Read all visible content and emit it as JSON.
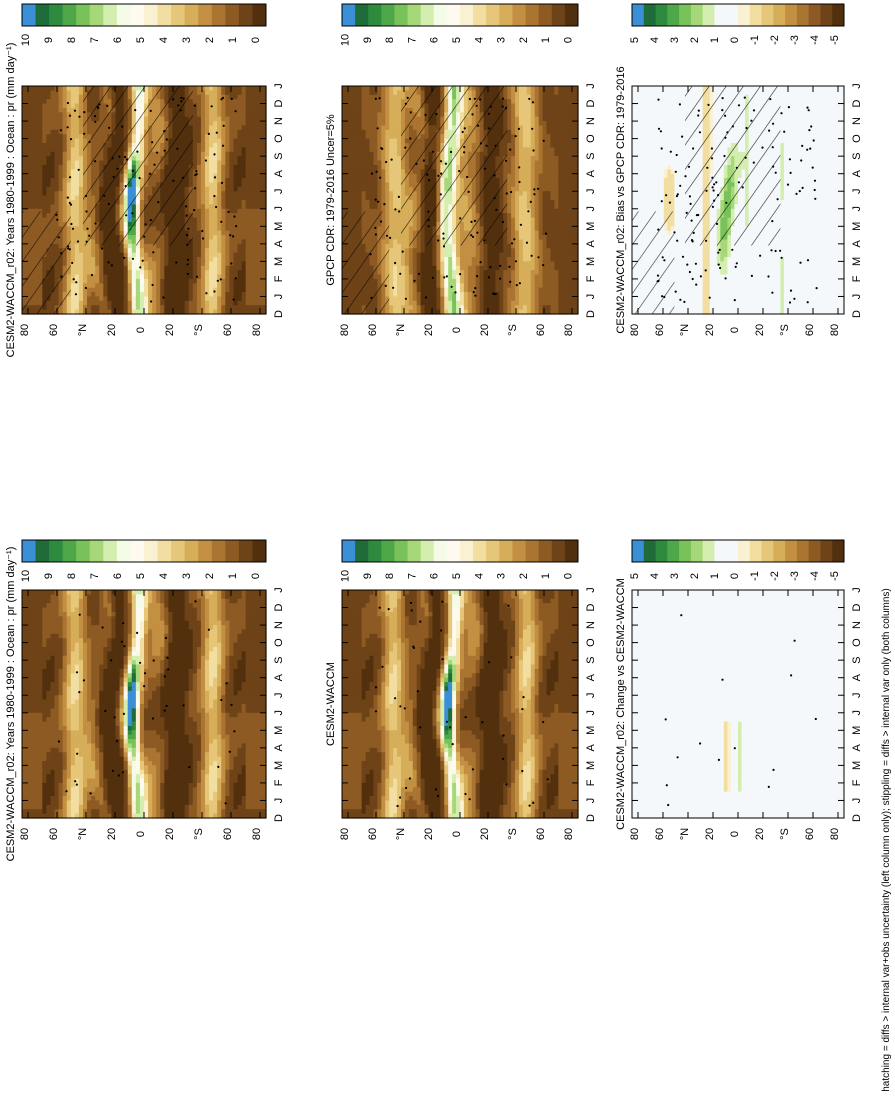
{
  "figure": {
    "footnote": "hatching = diffs > internal var+obs uncertainty (left column only); stippling = diffs > internal var only (both columns)"
  },
  "months": [
    "D",
    "J",
    "F",
    "M",
    "A",
    "M",
    "J",
    "J",
    "A",
    "S",
    "O",
    "N",
    "D",
    "J"
  ],
  "lat_ticks": [
    "80",
    "60",
    "°N",
    "20",
    "0",
    "20",
    "°S",
    "60",
    "80"
  ],
  "colorbars": {
    "absolute": {
      "labels": [
        "10",
        "9",
        "8",
        "7",
        "6",
        "5",
        "4",
        "3",
        "2",
        "1",
        "0"
      ],
      "colors": [
        "#3a8fd6",
        "#1f6b3a",
        "#2e8b3e",
        "#4ea84a",
        "#79c25a",
        "#a6d87a",
        "#d4eeb0",
        "#f4fbe6",
        "#fffaf0",
        "#faf0d2",
        "#f1dea0",
        "#e6c678",
        "#d6ad58",
        "#c39043",
        "#aa7431",
        "#8c5a22",
        "#6e4317",
        "#52300e"
      ]
    },
    "difference": {
      "labels": [
        "5",
        "4",
        "3",
        "2",
        "1",
        "0",
        "-1",
        "-2",
        "-3",
        "-4",
        "-5"
      ],
      "colors": [
        "#3a8fd6",
        "#1f6b3a",
        "#2e8b3e",
        "#4ea84a",
        "#79c25a",
        "#a6d87a",
        "#d4eeb0",
        "#f4f8fb",
        "#f4f8fb",
        "#faf0d2",
        "#f1dea0",
        "#e6c678",
        "#d6ad58",
        "#c39043",
        "#aa7431",
        "#8c5a22",
        "#6e4317",
        "#52300e"
      ]
    }
  },
  "panels": [
    {
      "id": "a",
      "title": "CESM2-WACCM_r02: Years 1980-1999 : Ocean : pr (mm day⁻¹)",
      "kind": "abs",
      "hatch": true,
      "stipple": "heavy"
    },
    {
      "id": "b",
      "title": "CESM2-WACCM_r02: Years 1980-1999 : Ocean : pr (mm day⁻¹)",
      "kind": "abs",
      "hatch": false,
      "stipple": "light"
    },
    {
      "id": "c",
      "title": "GPCP CDR: 1979-2016 Uncer=5%",
      "kind": "abs",
      "hatch": true,
      "stipple": "heavy"
    },
    {
      "id": "d",
      "title": "CESM2-WACCM",
      "kind": "abs",
      "hatch": false,
      "stipple": "light"
    },
    {
      "id": "e",
      "title": "CESM2-WACCM_r02: Bias vs GPCP CDR: 1979-2016",
      "kind": "bias",
      "hatch": true,
      "stipple": "heavy"
    },
    {
      "id": "f",
      "title": "CESM2-WACCM_r02: Change vs CESM2-WACCM",
      "kind": "change",
      "hatch": false,
      "stipple": "sparse"
    }
  ],
  "chart_data": [
    {
      "type": "heatmap",
      "title": "CESM2-WACCM_r02: Years 1980-1999 : Ocean : pr (mm day⁻¹)",
      "x": "month (D..J)",
      "y": "latitude 80S-80N",
      "zlim": [
        0,
        10
      ],
      "features": "ITCZ maximum ~10 mm/day near 5-10N, strongest Jun-Oct; dry subtropics ~0-1 mm/day"
    },
    {
      "type": "heatmap",
      "title": "CESM2-WACCM_r02: Years 1980-1999 : Ocean : pr (mm day⁻¹)",
      "x": "month (D..J)",
      "y": "latitude 80S-80N",
      "zlim": [
        0,
        10
      ]
    },
    {
      "type": "heatmap",
      "title": "GPCP CDR: 1979-2016 Uncer=5%",
      "x": "month (D..J)",
      "y": "latitude 80S-80N",
      "zlim": [
        0,
        10
      ],
      "features": "ITCZ maximum ~6-7 mm/day near 5-8N"
    },
    {
      "type": "heatmap",
      "title": "CESM2-WACCM",
      "x": "month (D..J)",
      "y": "latitude 80S-80N",
      "zlim": [
        0,
        10
      ]
    },
    {
      "type": "heatmap",
      "title": "CESM2-WACCM_r02: Bias vs GPCP CDR: 1979-2016",
      "x": "month (D..J)",
      "y": "latitude 80S-80N",
      "zlim": [
        -5,
        5
      ],
      "features": "positive bias 1-3 mm/day in tropics 0-20N; weak negative bias in subtropics"
    },
    {
      "type": "heatmap",
      "title": "CESM2-WACCM_r02: Change vs CESM2-WACCM",
      "x": "month (D..J)",
      "y": "latitude 80S-80N",
      "zlim": [
        -5,
        5
      ],
      "features": "near-zero everywhere; small +1 / -1 patch near equator Feb-Jun"
    }
  ]
}
